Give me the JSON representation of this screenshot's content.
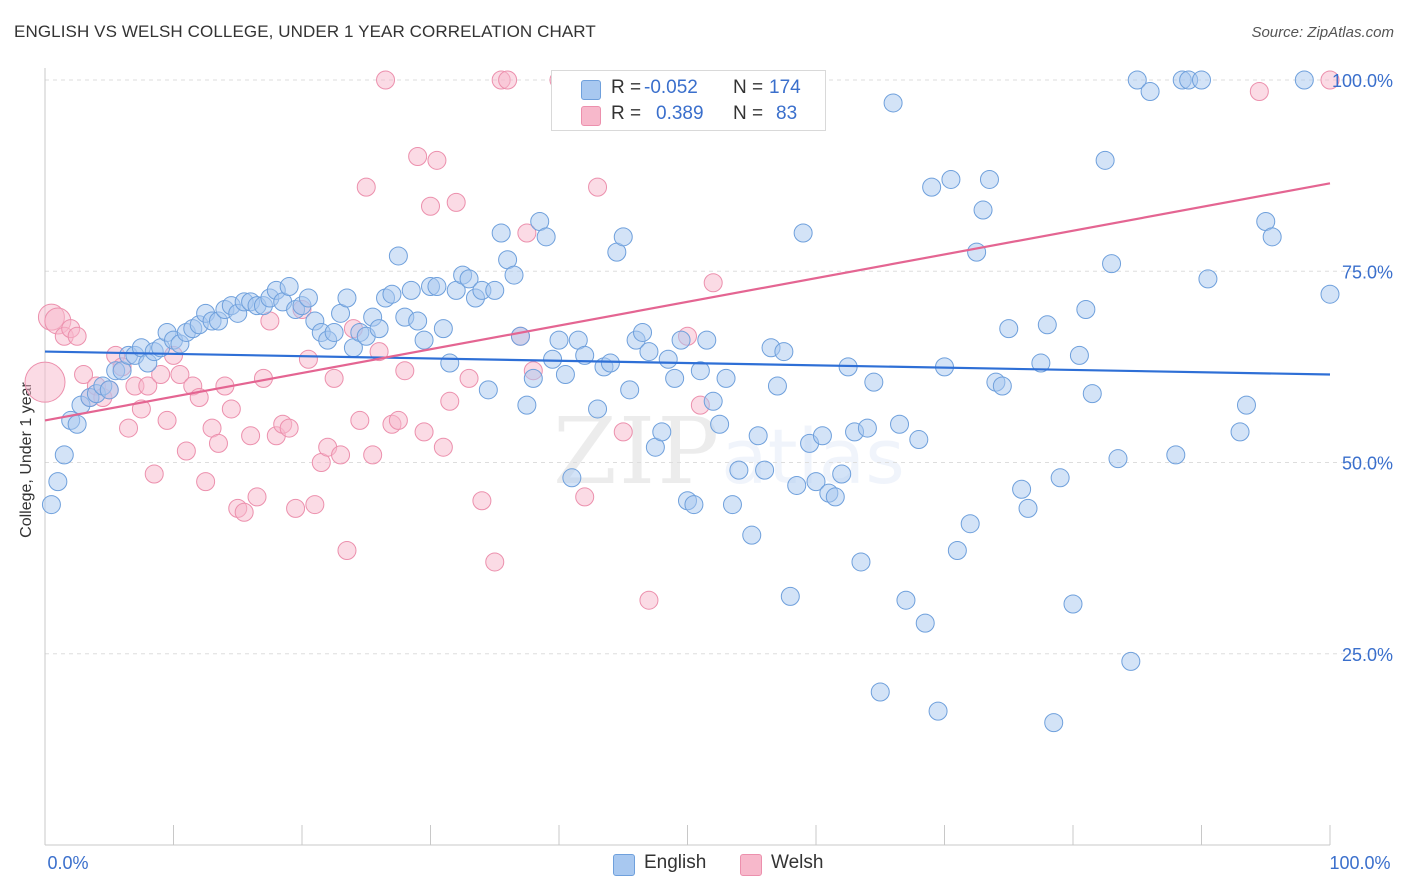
{
  "title": "ENGLISH VS WELSH COLLEGE, UNDER 1 YEAR CORRELATION CHART",
  "source": "Source: ZipAtlas.com",
  "watermark": {
    "part1": "ZIP",
    "part2": "atlas"
  },
  "colors": {
    "english_fill": "#a8c8f0",
    "english_stroke": "#6fa0dc",
    "english_line": "#2e6fd6",
    "welsh_fill": "#f7b8cb",
    "welsh_stroke": "#ec90ad",
    "welsh_line": "#e46592",
    "axis_text": "#3a6fcc",
    "grid": "#dddddd"
  },
  "stats": {
    "english": {
      "r_label": "R =",
      "r_value": "-0.052",
      "n_label": "N =",
      "n_value": "174"
    },
    "welsh": {
      "r_label": "R =",
      "r_value": "0.389",
      "n_label": "N =",
      "n_value": "83"
    }
  },
  "legend": {
    "english": "English",
    "welsh": "Welsh"
  },
  "chart_data": {
    "type": "scatter",
    "title": "ENGLISH VS WELSH COLLEGE, UNDER 1 YEAR CORRELATION CHART",
    "xlabel": "",
    "ylabel": "College, Under 1 year",
    "xlim": [
      0,
      100
    ],
    "ylim": [
      0,
      100
    ],
    "x_tick_labels": [
      "0.0%",
      "100.0%"
    ],
    "y_tick_labels": [
      "25.0%",
      "50.0%",
      "75.0%",
      "100.0%"
    ],
    "y_tick_values": [
      25,
      50,
      75,
      100
    ],
    "grid": true,
    "legend_position": "bottom-center",
    "series": [
      {
        "name": "English",
        "regression": {
          "x": [
            0,
            100
          ],
          "y": [
            64.5,
            61.5
          ]
        },
        "points": [
          [
            0.5,
            44.5
          ],
          [
            1,
            47.5
          ],
          [
            1.5,
            51
          ],
          [
            2,
            55.5
          ],
          [
            2.5,
            55
          ],
          [
            2.8,
            57.5
          ],
          [
            3.5,
            58.5
          ],
          [
            4,
            59
          ],
          [
            4.5,
            60
          ],
          [
            5,
            59.5
          ],
          [
            5.5,
            62
          ],
          [
            6,
            62
          ],
          [
            6.5,
            64
          ],
          [
            7,
            64
          ],
          [
            7.5,
            65
          ],
          [
            8,
            63
          ],
          [
            8.5,
            64.5
          ],
          [
            9,
            65
          ],
          [
            9.5,
            67
          ],
          [
            10,
            66
          ],
          [
            10.5,
            65.5
          ],
          [
            11,
            67
          ],
          [
            11.5,
            67.5
          ],
          [
            12,
            68
          ],
          [
            12.5,
            69.5
          ],
          [
            13,
            68.5
          ],
          [
            13.5,
            68.5
          ],
          [
            14,
            70
          ],
          [
            14.5,
            70.5
          ],
          [
            15,
            69.5
          ],
          [
            15.5,
            71
          ],
          [
            16,
            71
          ],
          [
            16.5,
            70.5
          ],
          [
            17,
            70.5
          ],
          [
            17.5,
            71.5
          ],
          [
            18,
            72.5
          ],
          [
            18.5,
            71
          ],
          [
            19,
            73
          ],
          [
            19.5,
            70
          ],
          [
            20,
            70.5
          ],
          [
            20.5,
            71.5
          ],
          [
            21,
            68.5
          ],
          [
            21.5,
            67
          ],
          [
            22,
            66
          ],
          [
            22.5,
            67
          ],
          [
            23,
            69.5
          ],
          [
            23.5,
            71.5
          ],
          [
            24,
            65
          ],
          [
            24.5,
            67
          ],
          [
            25,
            66.5
          ],
          [
            25.5,
            69
          ],
          [
            26,
            67.5
          ],
          [
            26.5,
            71.5
          ],
          [
            27,
            72
          ],
          [
            27.5,
            77
          ],
          [
            28,
            69
          ],
          [
            28.5,
            72.5
          ],
          [
            29,
            68.5
          ],
          [
            29.5,
            66
          ],
          [
            30,
            73
          ],
          [
            30.5,
            73
          ],
          [
            31,
            67.5
          ],
          [
            31.5,
            63
          ],
          [
            32,
            72.5
          ],
          [
            32.5,
            74.5
          ],
          [
            33,
            74
          ],
          [
            33.5,
            71.5
          ],
          [
            34,
            72.5
          ],
          [
            34.5,
            59.5
          ],
          [
            35,
            72.5
          ],
          [
            35.5,
            80
          ],
          [
            36,
            76.5
          ],
          [
            36.5,
            74.5
          ],
          [
            37,
            66.5
          ],
          [
            37.5,
            57.5
          ],
          [
            38,
            61
          ],
          [
            38.5,
            81.5
          ],
          [
            39,
            79.5
          ],
          [
            39.5,
            63.5
          ],
          [
            40,
            66
          ],
          [
            40.5,
            61.5
          ],
          [
            41,
            48
          ],
          [
            41.5,
            66
          ],
          [
            42,
            64
          ],
          [
            43,
            57
          ],
          [
            43.5,
            62.5
          ],
          [
            44,
            63
          ],
          [
            44.5,
            77.5
          ],
          [
            45,
            79.5
          ],
          [
            45.5,
            59.5
          ],
          [
            46,
            66
          ],
          [
            46.5,
            67
          ],
          [
            47,
            64.5
          ],
          [
            47.5,
            52
          ],
          [
            48,
            54
          ],
          [
            48.5,
            63.5
          ],
          [
            49,
            61
          ],
          [
            49.5,
            66
          ],
          [
            50,
            45
          ],
          [
            50.5,
            44.5
          ],
          [
            51,
            62
          ],
          [
            51.5,
            66
          ],
          [
            52,
            58
          ],
          [
            52.5,
            55
          ],
          [
            53,
            61
          ],
          [
            53.5,
            44.5
          ],
          [
            54,
            49
          ],
          [
            55,
            40.5
          ],
          [
            55.5,
            53.5
          ],
          [
            56,
            49
          ],
          [
            56.5,
            65
          ],
          [
            57,
            60
          ],
          [
            57.5,
            64.5
          ],
          [
            58,
            32.5
          ],
          [
            58.5,
            47
          ],
          [
            59,
            80
          ],
          [
            59.5,
            52.5
          ],
          [
            60,
            47.5
          ],
          [
            60.5,
            53.5
          ],
          [
            61,
            46
          ],
          [
            61.5,
            45.5
          ],
          [
            62,
            48.5
          ],
          [
            62.5,
            62.5
          ],
          [
            63,
            54
          ],
          [
            63.5,
            37
          ],
          [
            64,
            54.5
          ],
          [
            64.5,
            60.5
          ],
          [
            65,
            20
          ],
          [
            66,
            97
          ],
          [
            66.5,
            55
          ],
          [
            67,
            32
          ],
          [
            68,
            53
          ],
          [
            68.5,
            29
          ],
          [
            69,
            86
          ],
          [
            69.5,
            17.5
          ],
          [
            70,
            62.5
          ],
          [
            70.5,
            87
          ],
          [
            71,
            38.5
          ],
          [
            72,
            42
          ],
          [
            72.5,
            77.5
          ],
          [
            73,
            83
          ],
          [
            73.5,
            87
          ],
          [
            74,
            60.5
          ],
          [
            74.5,
            60
          ],
          [
            75,
            67.5
          ],
          [
            76,
            46.5
          ],
          [
            76.5,
            44
          ],
          [
            77.5,
            63
          ],
          [
            78,
            68
          ],
          [
            78.5,
            16
          ],
          [
            79,
            48
          ],
          [
            80,
            31.5
          ],
          [
            80.5,
            64
          ],
          [
            81,
            70
          ],
          [
            81.5,
            59
          ],
          [
            82.5,
            89.5
          ],
          [
            83,
            76
          ],
          [
            83.5,
            50.5
          ],
          [
            84.5,
            24
          ],
          [
            85,
            100
          ],
          [
            86,
            98.5
          ],
          [
            88,
            51
          ],
          [
            88.5,
            100
          ],
          [
            89,
            100
          ],
          [
            90,
            100
          ],
          [
            90.5,
            74
          ],
          [
            93,
            54
          ],
          [
            93.5,
            57.5
          ],
          [
            95,
            81.5
          ],
          [
            95.5,
            79.5
          ],
          [
            98,
            100
          ],
          [
            100,
            72
          ]
        ]
      },
      {
        "name": "Welsh",
        "regression": {
          "x": [
            0,
            100
          ],
          "y": [
            55.5,
            86.5
          ]
        },
        "points": [
          [
            0,
            60.5
          ],
          [
            0.5,
            69
          ],
          [
            1,
            68.5
          ],
          [
            1.5,
            66.5
          ],
          [
            2,
            67.5
          ],
          [
            2.5,
            66.5
          ],
          [
            3,
            61.5
          ],
          [
            3.5,
            58.5
          ],
          [
            4,
            60
          ],
          [
            4.5,
            58.5
          ],
          [
            5,
            59.5
          ],
          [
            5.5,
            64
          ],
          [
            6,
            62.5
          ],
          [
            6.5,
            54.5
          ],
          [
            7,
            60
          ],
          [
            7.5,
            57
          ],
          [
            8,
            60
          ],
          [
            8.5,
            48.5
          ],
          [
            9,
            61.5
          ],
          [
            9.5,
            55.5
          ],
          [
            10,
            64
          ],
          [
            10.5,
            61.5
          ],
          [
            11,
            51.5
          ],
          [
            11.5,
            60
          ],
          [
            12,
            58.5
          ],
          [
            12.5,
            47.5
          ],
          [
            13,
            54.5
          ],
          [
            13.5,
            52.5
          ],
          [
            14,
            60
          ],
          [
            14.5,
            57
          ],
          [
            15,
            44
          ],
          [
            15.5,
            43.5
          ],
          [
            16,
            53.5
          ],
          [
            16.5,
            45.5
          ],
          [
            17,
            61
          ],
          [
            17.5,
            68.5
          ],
          [
            18,
            53.5
          ],
          [
            18.5,
            55
          ],
          [
            19,
            54.5
          ],
          [
            19.5,
            44
          ],
          [
            20,
            70
          ],
          [
            20.5,
            63.5
          ],
          [
            21,
            44.5
          ],
          [
            21.5,
            50
          ],
          [
            22,
            52
          ],
          [
            22.5,
            61
          ],
          [
            23,
            51
          ],
          [
            23.5,
            38.5
          ],
          [
            24,
            67.5
          ],
          [
            24.5,
            55.5
          ],
          [
            25,
            86
          ],
          [
            25.5,
            51
          ],
          [
            26,
            64.5
          ],
          [
            26.5,
            100
          ],
          [
            27,
            55
          ],
          [
            27.5,
            55.5
          ],
          [
            28,
            62
          ],
          [
            29,
            90
          ],
          [
            29.5,
            54
          ],
          [
            30,
            83.5
          ],
          [
            30.5,
            89.5
          ],
          [
            31,
            52
          ],
          [
            31.5,
            58
          ],
          [
            32,
            84
          ],
          [
            33,
            61
          ],
          [
            34,
            45
          ],
          [
            35,
            37
          ],
          [
            35.5,
            100
          ],
          [
            36,
            100
          ],
          [
            37,
            66.5
          ],
          [
            37.5,
            80
          ],
          [
            38,
            62
          ],
          [
            40,
            100
          ],
          [
            42,
            45.5
          ],
          [
            43,
            86
          ],
          [
            45,
            54
          ],
          [
            47,
            32
          ],
          [
            48,
            100
          ],
          [
            50,
            66.5
          ],
          [
            51,
            57.5
          ],
          [
            52,
            73.5
          ],
          [
            54,
            95.5
          ],
          [
            94.5,
            98.5
          ],
          [
            100,
            100
          ]
        ]
      }
    ]
  }
}
